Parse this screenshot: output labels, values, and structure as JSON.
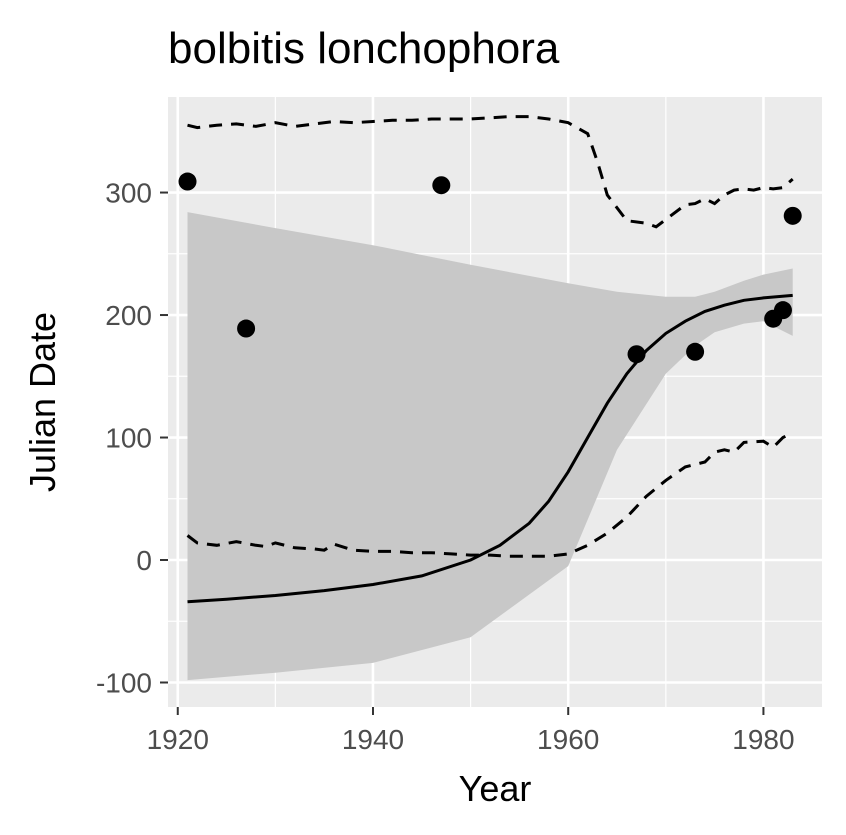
{
  "chart_data": {
    "type": "line",
    "title": "bolbitis lonchophora",
    "xlabel": "Year",
    "ylabel": "Julian Date",
    "xlim": [
      1919,
      1986
    ],
    "ylim": [
      -120,
      378
    ],
    "x_ticks": [
      1920,
      1940,
      1960,
      1980
    ],
    "y_ticks": [
      -100,
      0,
      100,
      200,
      300
    ],
    "x_tick_labels": [
      "1920",
      "1940",
      "1960",
      "1980"
    ],
    "y_tick_labels": [
      "-100",
      "0",
      "100",
      "200",
      "300"
    ],
    "grid": true,
    "legend": "none",
    "colors": {
      "panel": "#ebebeb",
      "grid": "#ffffff",
      "ribbon": "#c8c8c8",
      "line": "#000000",
      "points": "#000000"
    },
    "points": {
      "x": [
        1921,
        1927,
        1947,
        1967,
        1973,
        1981,
        1982,
        1983
      ],
      "y": [
        309,
        189,
        306,
        168,
        170,
        197,
        204,
        281
      ]
    },
    "fit_line": {
      "x": [
        1921,
        1925,
        1930,
        1935,
        1940,
        1945,
        1950,
        1953,
        1956,
        1958,
        1960,
        1962,
        1964,
        1966,
        1968,
        1970,
        1972,
        1974,
        1976,
        1978,
        1980,
        1983
      ],
      "y": [
        -34,
        -32,
        -29,
        -25,
        -20,
        -13,
        0,
        12,
        30,
        48,
        72,
        100,
        128,
        152,
        171,
        185,
        195,
        203,
        208,
        212,
        214,
        216
      ]
    },
    "ribbon": {
      "x": [
        1921,
        1930,
        1940,
        1950,
        1960,
        1965,
        1970,
        1973,
        1975,
        1978,
        1980,
        1983
      ],
      "upper": [
        284,
        271,
        257,
        241,
        226,
        219,
        215,
        215,
        219,
        228,
        233,
        238
      ],
      "lower": [
        -98,
        -92,
        -84,
        -63,
        -5,
        90,
        152,
        175,
        186,
        193,
        195,
        183
      ]
    },
    "upper_dashed": {
      "x": [
        1921,
        1922,
        1924,
        1926,
        1928,
        1930,
        1932,
        1934,
        1936,
        1938,
        1940,
        1942,
        1944,
        1946,
        1948,
        1950,
        1952,
        1954,
        1956,
        1958,
        1960,
        1962,
        1963,
        1964,
        1966,
        1968,
        1969,
        1970,
        1972,
        1973,
        1974,
        1975,
        1976,
        1977,
        1978,
        1979,
        1980,
        1981,
        1982,
        1983
      ],
      "y": [
        355,
        353,
        355,
        356,
        354,
        357,
        354,
        356,
        358,
        357,
        358,
        359,
        359,
        360,
        360,
        360,
        361,
        362,
        362,
        360,
        357,
        348,
        325,
        298,
        277,
        275,
        272,
        278,
        290,
        291,
        295,
        291,
        298,
        302,
        303,
        302,
        304,
        303,
        304,
        311
      ]
    },
    "lower_dashed": {
      "x": [
        1921,
        1922,
        1924,
        1926,
        1928,
        1929,
        1930,
        1932,
        1934,
        1935,
        1936,
        1938,
        1940,
        1942,
        1944,
        1946,
        1948,
        1950,
        1952,
        1954,
        1956,
        1958,
        1960,
        1962,
        1964,
        1966,
        1968,
        1970,
        1972,
        1974,
        1975,
        1976,
        1977,
        1978,
        1980,
        1981,
        1982,
        1983
      ],
      "y": [
        20,
        14,
        12,
        15,
        12,
        11,
        14,
        10,
        9,
        8,
        13,
        8,
        7,
        7,
        6,
        6,
        5,
        4,
        4,
        3,
        3,
        3,
        5,
        12,
        22,
        35,
        52,
        65,
        76,
        80,
        88,
        90,
        88,
        96,
        97,
        92,
        100,
        104
      ]
    }
  }
}
